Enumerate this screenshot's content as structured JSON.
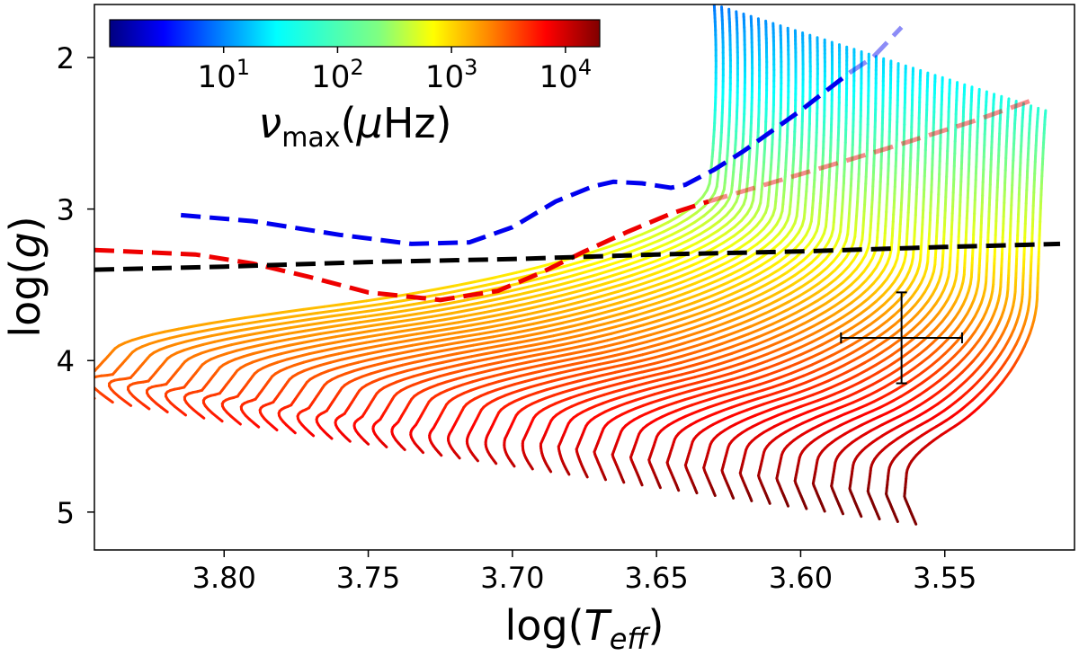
{
  "chart_data": {
    "type": "line",
    "title": "",
    "xlabel": "log(T_eff)",
    "ylabel": "log(g)",
    "xlim": [
      3.845,
      3.505
    ],
    "ylim": [
      1.65,
      5.25
    ],
    "x_ticks": [
      3.8,
      3.75,
      3.7,
      3.65,
      3.6,
      3.55
    ],
    "x_tick_labels": [
      "3.80",
      "3.75",
      "3.70",
      "3.65",
      "3.60",
      "3.55"
    ],
    "y_ticks": [
      2,
      3,
      4,
      5
    ],
    "y_tick_labels": [
      "2",
      "3",
      "4",
      "5"
    ],
    "colorbar": {
      "label": "ν_max(μHz)",
      "scale": "log",
      "range": [
        1,
        20000
      ],
      "ticks": [
        10,
        100,
        1000,
        10000
      ],
      "tick_labels": [
        "10^1",
        "10^2",
        "10^3",
        "10^4"
      ],
      "colormap": [
        "#000080",
        "#0000ff",
        "#0080ff",
        "#00ffff",
        "#80ff80",
        "#ffff00",
        "#ff8000",
        "#ff0000",
        "#800000"
      ]
    },
    "tracks": {
      "count": 46,
      "description": "grid of evolutionary tracks coloured by nu_max",
      "zams_start": {
        "teff": 3.845,
        "logg": 4.25
      },
      "zams_end": {
        "teff": 3.56,
        "logg": 5.08
      },
      "tip_start": {
        "teff": 3.63,
        "logg": 1.65
      },
      "tip_end": {
        "teff": 3.515,
        "logg": 2.35
      }
    },
    "series": [
      {
        "name": "blue dashed",
        "color": "#0000ee",
        "x": [
          3.815,
          3.79,
          3.76,
          3.735,
          3.715,
          3.7,
          3.685,
          3.672,
          3.665,
          3.655,
          3.645,
          3.64,
          3.63,
          3.62,
          3.6,
          3.583
        ],
        "y": [
          3.04,
          3.08,
          3.17,
          3.23,
          3.22,
          3.12,
          2.95,
          2.85,
          2.82,
          2.83,
          2.86,
          2.84,
          2.74,
          2.62,
          2.35,
          2.1
        ]
      },
      {
        "name": "blue dashed faded",
        "color": "#0000ee",
        "opacity": 0.45,
        "x": [
          3.583,
          3.575,
          3.57,
          3.565
        ],
        "y": [
          2.1,
          2.0,
          1.9,
          1.8
        ]
      },
      {
        "name": "red dashed",
        "color": "#ee0000",
        "x": [
          3.845,
          3.81,
          3.79,
          3.77,
          3.75,
          3.725,
          3.705,
          3.69,
          3.675,
          3.66,
          3.645,
          3.632
        ],
        "y": [
          3.27,
          3.3,
          3.36,
          3.45,
          3.55,
          3.6,
          3.54,
          3.42,
          3.28,
          3.15,
          3.03,
          2.95
        ]
      },
      {
        "name": "red dashed faded",
        "color": "#ee0000",
        "opacity": 0.45,
        "x": [
          3.632,
          3.6,
          3.57,
          3.54,
          3.518
        ],
        "y": [
          2.95,
          2.77,
          2.6,
          2.42,
          2.27
        ]
      },
      {
        "name": "black dashed",
        "color": "#000000",
        "x": [
          3.845,
          3.8,
          3.75,
          3.7,
          3.65,
          3.6,
          3.55,
          3.51
        ],
        "y": [
          3.4,
          3.38,
          3.35,
          3.33,
          3.3,
          3.28,
          3.25,
          3.23
        ]
      }
    ],
    "errorbar": {
      "x": 3.565,
      "y": 3.85,
      "xerr": 0.021,
      "yerr": 0.3
    }
  }
}
